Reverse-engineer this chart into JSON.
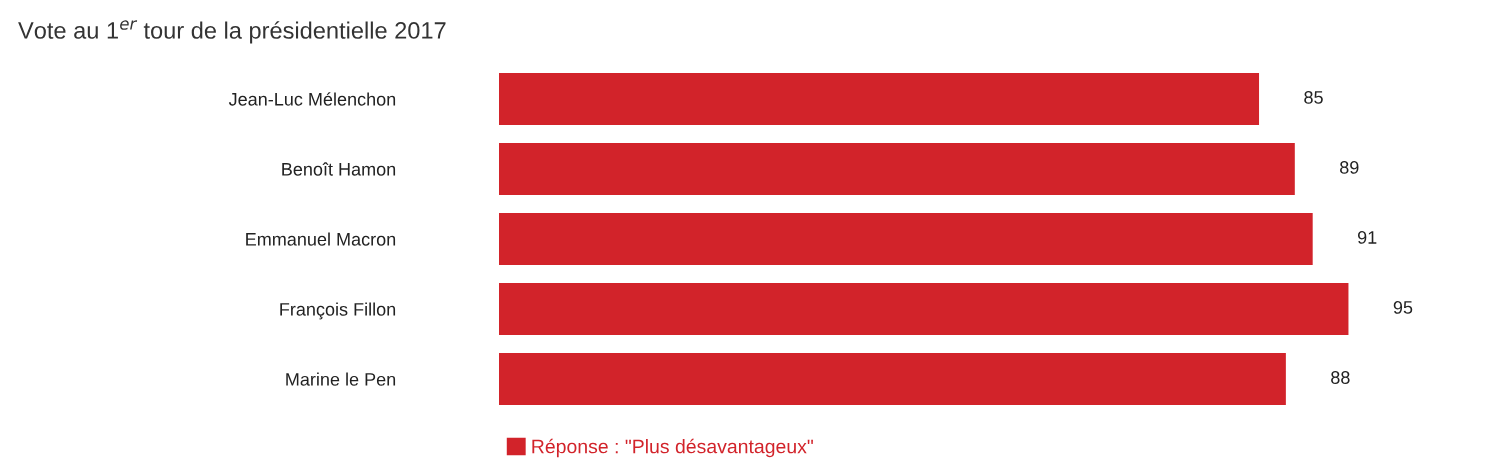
{
  "chart_data": {
    "type": "bar",
    "orientation": "horizontal",
    "title": "Vote au 1$^{er}$ tour de la présidentielle 2017",
    "categories": [
      "Jean-Luc Mélenchon",
      "Benoît Hamon",
      "Emmanuel Macron",
      "François Fillon",
      "Marine le Pen"
    ],
    "series": [
      {
        "name": "Réponse : \"Plus désavantageux\"",
        "color": "#d2232a",
        "values": [
          85,
          89,
          91,
          95,
          88
        ]
      }
    ],
    "data_labels": true,
    "tick_labels": "y",
    "grid": false,
    "legend": "bottom"
  }
}
